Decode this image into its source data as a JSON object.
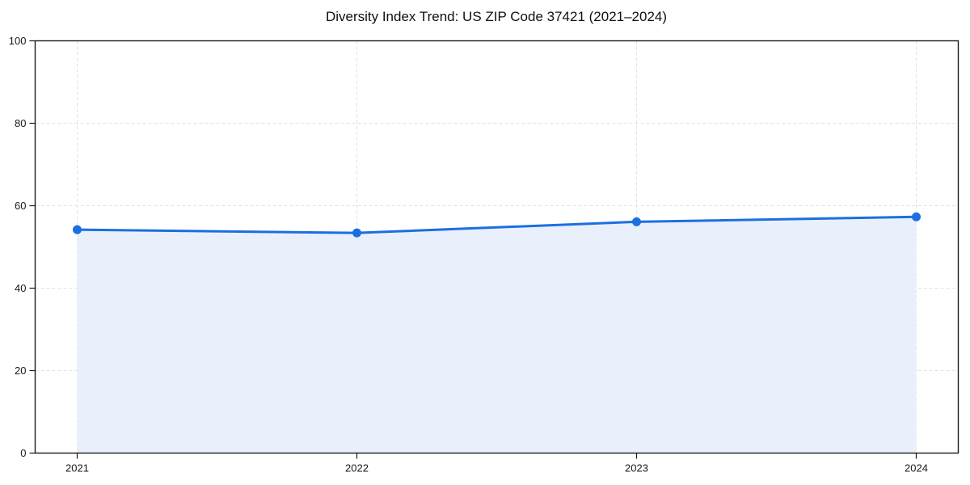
{
  "chart_data": {
    "type": "area",
    "title": "Diversity Index Trend: US ZIP Code 37421 (2021–2024)",
    "x": [
      2021,
      2022,
      2023,
      2024
    ],
    "xtick_labels": [
      "2021",
      "2022",
      "2023",
      "2024"
    ],
    "series": [
      {
        "name": "Diversity Index",
        "values": [
          54.2,
          53.4,
          56.1,
          57.3
        ]
      }
    ],
    "xlabel": "",
    "ylabel": "",
    "ylim": [
      0,
      100
    ],
    "yticks": [
      0,
      20,
      40,
      60,
      80,
      100
    ],
    "grid": true,
    "grid_style": "dashed",
    "legend_position": "none",
    "markers": true,
    "area_fill": true
  },
  "colors": {
    "line": "#1b6fe1",
    "marker": "#1b6fe1",
    "area_fill": "#e9f0fc",
    "grid": "#e2e2e2",
    "frame": "#1a1a1a",
    "tick": "#1a1a1a",
    "text": "#1a1a1a",
    "background": "#ffffff"
  }
}
